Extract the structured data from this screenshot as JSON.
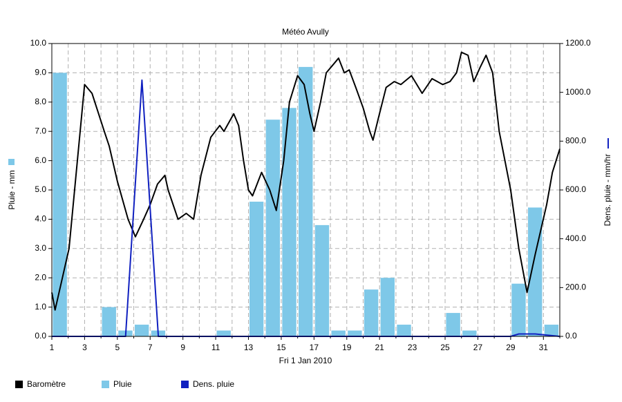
{
  "chart_data": {
    "type": "combo",
    "title": "Météo Avully",
    "x_label": "Fri 1 Jan 2010",
    "y_label": "Pluie - mm",
    "y2_label": "Dens. pluie - mm/hr",
    "xlim": [
      1,
      32
    ],
    "xticks": [
      1,
      3,
      5,
      7,
      9,
      11,
      13,
      15,
      17,
      19,
      21,
      23,
      25,
      27,
      29,
      31
    ],
    "xminorticks": [
      2,
      4,
      6,
      8,
      10,
      12,
      14,
      16,
      18,
      20,
      22,
      24,
      26,
      28,
      30,
      32
    ],
    "ylim": [
      0,
      10
    ],
    "yticks": [
      {
        "value": 0,
        "label": "0.0"
      },
      {
        "value": 1,
        "label": "1.0"
      },
      {
        "value": 2,
        "label": "2.0"
      },
      {
        "value": 3,
        "label": "3.0"
      },
      {
        "value": 4,
        "label": "4.0"
      },
      {
        "value": 5,
        "label": "5.0"
      },
      {
        "value": 6,
        "label": "6.0"
      },
      {
        "value": 7,
        "label": "7.0"
      },
      {
        "value": 8,
        "label": "8.0"
      },
      {
        "value": 9,
        "label": "9.0"
      },
      {
        "value": 10,
        "label": "10.0"
      }
    ],
    "y2lim": [
      0,
      1200
    ],
    "y2ticks": [
      {
        "value": 0,
        "label": "0.0"
      },
      {
        "value": 200,
        "label": "200.0"
      },
      {
        "value": 400,
        "label": "400.0"
      },
      {
        "value": 600,
        "label": "600.0"
      },
      {
        "value": 800,
        "label": "800.0"
      },
      {
        "value": 1000,
        "label": "1000.0"
      },
      {
        "value": 1200,
        "label": "1200.0"
      }
    ],
    "grid": true,
    "series": [
      {
        "name": "Baromètre",
        "type": "line",
        "color": "#000000",
        "axis": "y",
        "x": [
          1,
          1.2,
          2.05,
          3.0,
          3.45,
          4.2,
          4.5,
          5.0,
          5.65,
          6.1,
          6.6,
          7.0,
          7.45,
          7.9,
          8.1,
          8.7,
          9.2,
          9.65,
          10.1,
          10.7,
          11.25,
          11.5,
          12.1,
          12.4,
          12.7,
          13.0,
          13.25,
          13.8,
          14.3,
          14.7,
          15.15,
          15.5,
          16.0,
          16.4,
          16.75,
          17.0,
          17.4,
          17.75,
          18.2,
          18.5,
          18.85,
          19.15,
          19.55,
          20.0,
          20.4,
          20.6,
          20.95,
          21.4,
          21.9,
          22.3,
          22.95,
          23.6,
          24.2,
          24.85,
          25.3,
          25.7,
          26.0,
          26.4,
          26.75,
          27.15,
          27.5,
          27.9,
          28.3,
          29.0,
          29.5,
          30.0,
          30.5,
          31.2,
          31.55,
          32.0
        ],
        "values": [
          1.5,
          0.9,
          3.0,
          8.6,
          8.3,
          7.0,
          6.5,
          5.3,
          4.0,
          3.4,
          4.0,
          4.5,
          5.2,
          5.5,
          5.0,
          4.0,
          4.2,
          4.0,
          5.5,
          6.8,
          7.2,
          7.0,
          7.6,
          7.2,
          6.0,
          5.0,
          4.8,
          5.6,
          5.0,
          4.3,
          6.0,
          8.0,
          8.9,
          8.6,
          7.6,
          7.0,
          8.0,
          9.0,
          9.3,
          9.5,
          9.0,
          9.1,
          8.5,
          7.8,
          7.0,
          6.7,
          7.5,
          8.5,
          8.7,
          8.6,
          8.9,
          8.3,
          8.8,
          8.6,
          8.7,
          9.0,
          9.7,
          9.6,
          8.7,
          9.2,
          9.6,
          9.0,
          7.0,
          5.0,
          3.0,
          1.5,
          2.8,
          4.5,
          5.6,
          6.4
        ]
      },
      {
        "name": "Pluie",
        "type": "bar",
        "color": "#7ec8e8",
        "axis": "y",
        "x": [
          1,
          4,
          5,
          6,
          7,
          11,
          13,
          14,
          15,
          16,
          17,
          18,
          19,
          20,
          21,
          22,
          25,
          26,
          29,
          30,
          31
        ],
        "values": [
          9.0,
          1.0,
          0.2,
          0.4,
          0.2,
          0.2,
          4.6,
          7.4,
          7.8,
          9.2,
          3.8,
          0.2,
          0.2,
          1.6,
          2.0,
          0.4,
          0.8,
          0.2,
          1.8,
          4.4,
          0.4
        ]
      },
      {
        "name": "Dens. pluie",
        "type": "line",
        "color": "#1020c0",
        "axis": "y2",
        "x": [
          1,
          5.5,
          6.5,
          7.5,
          29,
          29.5,
          30.5,
          32
        ],
        "values": [
          0,
          0,
          1050,
          0,
          0,
          10,
          10,
          0
        ]
      }
    ]
  }
}
